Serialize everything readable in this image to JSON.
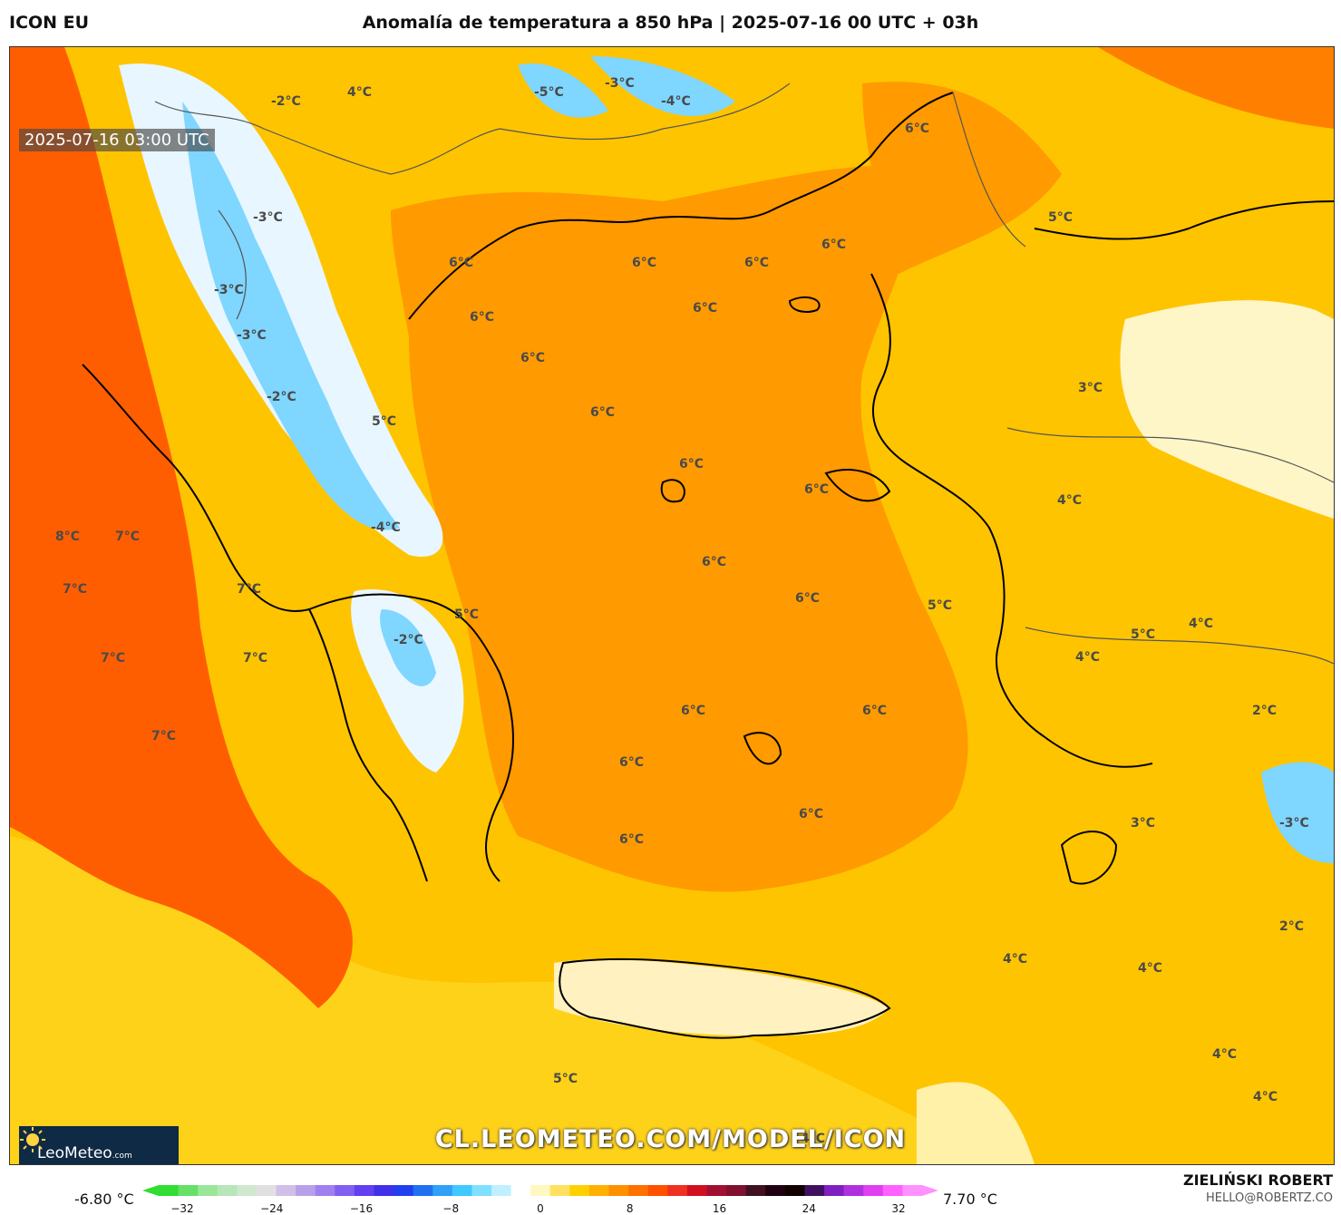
{
  "header": {
    "model": "ICON EU",
    "title": "Anomalía de temperatura a 850 hPa | 2025-07-16 00 UTC + 03h"
  },
  "map": {
    "valid_time": "2025-07-16 03:00 UTC",
    "watermark": "CL.LEOMETEO.COM/MODEL/ICON",
    "logo_text": "LeoMeteo",
    "logo_suffix": ".com",
    "labels": [
      {
        "text": "-2°C"
      },
      {
        "text": "4°C"
      },
      {
        "text": "-5°C"
      },
      {
        "text": "-3°C"
      },
      {
        "text": "-4°C"
      },
      {
        "text": "6°C"
      },
      {
        "text": "-3°C"
      },
      {
        "text": "6°C"
      },
      {
        "text": "6°C"
      },
      {
        "text": "6°C"
      },
      {
        "text": "6°C"
      },
      {
        "text": "5°C"
      },
      {
        "text": "-3°C"
      },
      {
        "text": "6°C"
      },
      {
        "text": "6°C"
      },
      {
        "text": "-3°C"
      },
      {
        "text": "6°C"
      },
      {
        "text": "3°C"
      },
      {
        "text": "-2°C"
      },
      {
        "text": "5°C"
      },
      {
        "text": "6°C"
      },
      {
        "text": "6°C"
      },
      {
        "text": "6°C"
      },
      {
        "text": "4°C"
      },
      {
        "text": "8°C"
      },
      {
        "text": "7°C"
      },
      {
        "text": "-4°C"
      },
      {
        "text": "6°C"
      },
      {
        "text": "7°C"
      },
      {
        "text": "7°C"
      },
      {
        "text": "6°C"
      },
      {
        "text": "5°C"
      },
      {
        "text": "5°C"
      },
      {
        "text": "-2°C"
      },
      {
        "text": "4°C"
      },
      {
        "text": "5°C"
      },
      {
        "text": "7°C"
      },
      {
        "text": "7°C"
      },
      {
        "text": "4°C"
      },
      {
        "text": "6°C"
      },
      {
        "text": "6°C"
      },
      {
        "text": "2°C"
      },
      {
        "text": "7°C"
      },
      {
        "text": "6°C"
      },
      {
        "text": "6°C"
      },
      {
        "text": "3°C"
      },
      {
        "text": "-3°C"
      },
      {
        "text": "6°C"
      },
      {
        "text": "2°C"
      },
      {
        "text": "4°C"
      },
      {
        "text": "4°C"
      },
      {
        "text": "4°C"
      },
      {
        "text": "5°C"
      },
      {
        "text": "4°C"
      },
      {
        "text": "4°C"
      }
    ]
  },
  "legend": {
    "min_label": "-6.80 °C",
    "max_label": "7.70 °C",
    "ticks": [
      "−32",
      "−24",
      "−16",
      "−8",
      "0",
      "8",
      "16",
      "24",
      "32"
    ],
    "colors": [
      "#33dd33",
      "#66e066",
      "#99e699",
      "#b8e6b8",
      "#cfe8cf",
      "#e0e0e0",
      "#d0c0e8",
      "#b8a0e8",
      "#a080f0",
      "#8060f0",
      "#6040f0",
      "#4030e8",
      "#2040f0",
      "#2070f0",
      "#30a0f8",
      "#40c8ff",
      "#80e0ff",
      "#c0f0ff",
      "#ffffff",
      "#fff8c0",
      "#ffe060",
      "#ffd000",
      "#ffb000",
      "#ff9000",
      "#ff7000",
      "#ff5000",
      "#f03020",
      "#d01020",
      "#a01030",
      "#801030",
      "#401020",
      "#200010",
      "#100000",
      "#401060",
      "#8020c0",
      "#b030e0",
      "#e040f0",
      "#ff60ff",
      "#ff90ff"
    ]
  },
  "credits": {
    "author": "ZIELIŃSKI ROBERT",
    "email": "HELLO@ROBERTZ.CO"
  }
}
